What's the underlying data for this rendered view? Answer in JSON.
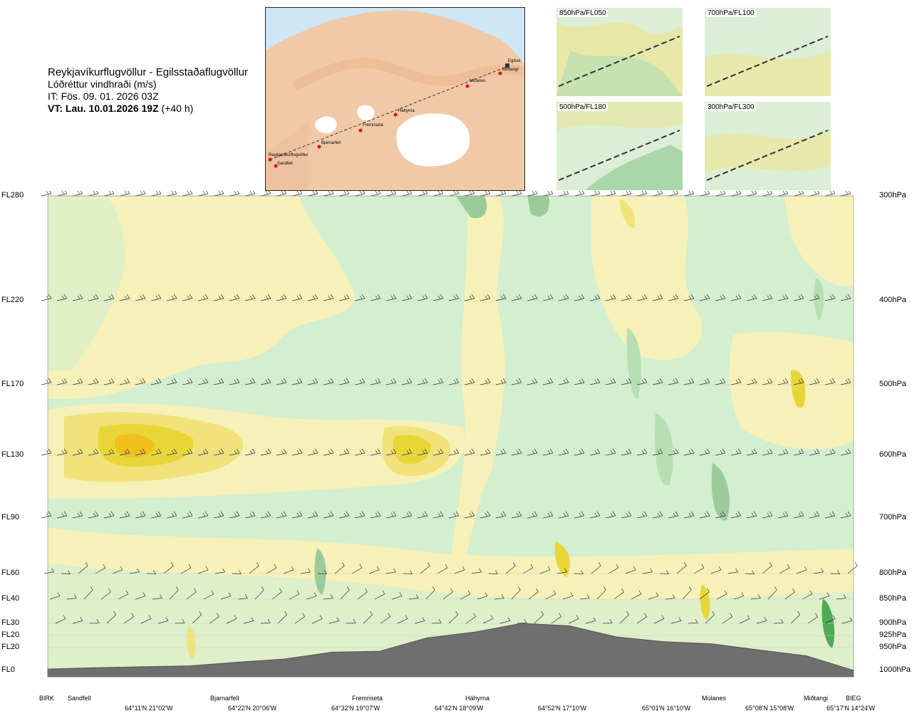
{
  "header": {
    "title": "Reykjavíkurflugvöllur - Egilsstaðaflugvöllur",
    "subtitle": "Lóðréttur vindhraði (m/s)",
    "it": "IT: Fös. 09. 01. 2026 03Z",
    "vt_lead": "VT: Lau. 10.01.2026 19Z",
    "vt_tail": " (+40 h)"
  },
  "map": {
    "places": [
      "Reykjavíkurflugvöllur",
      "Sandfell",
      "Bjarnarfell",
      "Fremriseta",
      "Háhyrna",
      "Múlanes",
      "Miðtangi",
      "Egilsst"
    ]
  },
  "thumbnails": [
    {
      "label": "850hPa/FL050"
    },
    {
      "label": "700hPa/FL100"
    },
    {
      "label": "500hPa/FL180"
    },
    {
      "label": "300hPa/FL300"
    }
  ],
  "left_axis": [
    "FL280",
    "FL220",
    "FL170",
    "FL130",
    "FL90",
    "FL60",
    "FL40",
    "FL30",
    "FL20",
    "FL20",
    "FL0"
  ],
  "right_axis": [
    "300hPa",
    "400hPa",
    "500hPa",
    "600hPa",
    "700hPa",
    "800hPa",
    "850hPa",
    "900hPa",
    "925hPa",
    "950hPa",
    "1000hPa"
  ],
  "stations": [
    "BIRK",
    "Sandfell",
    "Bjarnarfell",
    "Fremriseta",
    "Háhyrna",
    "Múlanes",
    "Miðtangi",
    "BIEG"
  ],
  "coords": [
    "64°11'N 21°02'W",
    "64°22'N 20°06'W",
    "64°32'N 19°07'W",
    "64°42'N 18°09'W",
    "64°52'N 17°10'W",
    "65°01'N 16°10'W",
    "65°08'N 15°08'W",
    "65°17'N 14°24'W"
  ],
  "colors": {
    "yellow_light": "#f6f1b8",
    "yellow": "#f1e27a",
    "yellow_strong": "#e8d636",
    "orange": "#f0c01c",
    "green_light": "#d4eed0",
    "green": "#b7dfb3",
    "green_mid": "#9ccb9b",
    "green_dark": "#4faa55",
    "terrain": "#6f6f6f",
    "map_sea": "#cfe6f5",
    "map_land": "#f1c9a6",
    "glacier": "#ffffff"
  },
  "chart_data": {
    "type": "cross-section",
    "title": "Reykjavíkurflugvöllur - Egilsstaðaflugvöllur",
    "subtitle": "Lóðréttur vindhraði (m/s)",
    "y_levels_fl": [
      "FL280",
      "FL220",
      "FL170",
      "FL130",
      "FL90",
      "FL60",
      "FL40",
      "FL30",
      "FL20",
      "FL20",
      "FL0"
    ],
    "y_levels_hpa": [
      300,
      400,
      500,
      600,
      700,
      800,
      850,
      900,
      925,
      950,
      1000
    ],
    "x_stations": [
      "BIRK",
      "Sandfell",
      "Bjarnarfell",
      "Fremriseta",
      "Háhyrna",
      "Múlanes",
      "Miðtangi",
      "BIEG"
    ],
    "terrain_profile_hpa": [
      997,
      994,
      992,
      990,
      982,
      975,
      960,
      958,
      930,
      918,
      900,
      905,
      928,
      938,
      942,
      955,
      968,
      1000
    ]
  }
}
